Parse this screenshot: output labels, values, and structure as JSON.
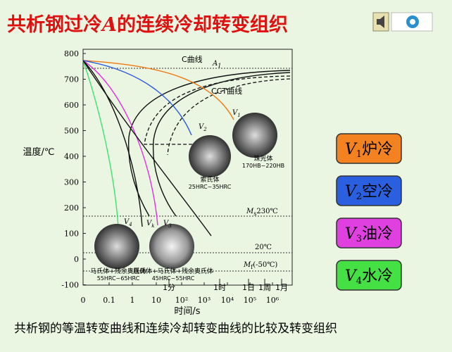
{
  "title": {
    "before": "共析钢过冷",
    "italic": "A",
    "after": "的连续冷却转变组织"
  },
  "chart": {
    "y_label": "温度/℃",
    "x_label": "时间/s",
    "y_ticks": [
      "800",
      "700",
      "600",
      "500",
      "400",
      "300",
      "200",
      "100",
      "0",
      "-100"
    ],
    "x_ticks": [
      "0",
      "0.1",
      "1",
      "10",
      "10²",
      "10³",
      "10⁴",
      "10⁵",
      "10⁶"
    ],
    "time_marks": [
      "1分",
      "1时",
      "1日",
      "1周",
      "1月"
    ],
    "c_curve": "C曲线",
    "cct_curve": "CCT曲线",
    "a1": {
      "main": "A",
      "sub": "1"
    },
    "ms": {
      "main": "M",
      "sub": "s",
      "rest": "230℃"
    },
    "room": "20℃",
    "mf": {
      "main": "M",
      "sub": "f",
      "rest": "(-50℃)"
    },
    "rate_labels": [
      {
        "main": "V",
        "sub": "1"
      },
      {
        "main": "V",
        "sub": "2"
      },
      {
        "main": "V",
        "sub": "4"
      },
      {
        "main": "V",
        "sub": "k"
      },
      {
        "main": "V",
        "sub": "3"
      }
    ],
    "structures": [
      {
        "name": "珠光体",
        "hardness": "170HB~220HB"
      },
      {
        "name": "索氏体",
        "hardness": "25HRC~35HRC"
      },
      {
        "name": "马氏体+残余奥氏体",
        "hardness": "55HRC~65HRC"
      },
      {
        "name": "屈氏体+马氏体+残余奥氏体",
        "hardness": "45HRC~55HRC"
      }
    ]
  },
  "buttons": [
    {
      "v": "V",
      "sub": "1",
      "label": "炉冷"
    },
    {
      "v": "V",
      "sub": "2",
      "label": "空冷"
    },
    {
      "v": "V",
      "sub": "3",
      "label": "油冷"
    },
    {
      "v": "V",
      "sub": "4",
      "label": "水冷"
    }
  ],
  "caption": "共析钢的等温转变曲线和连续冷却转变曲线的比较及转变组织"
}
